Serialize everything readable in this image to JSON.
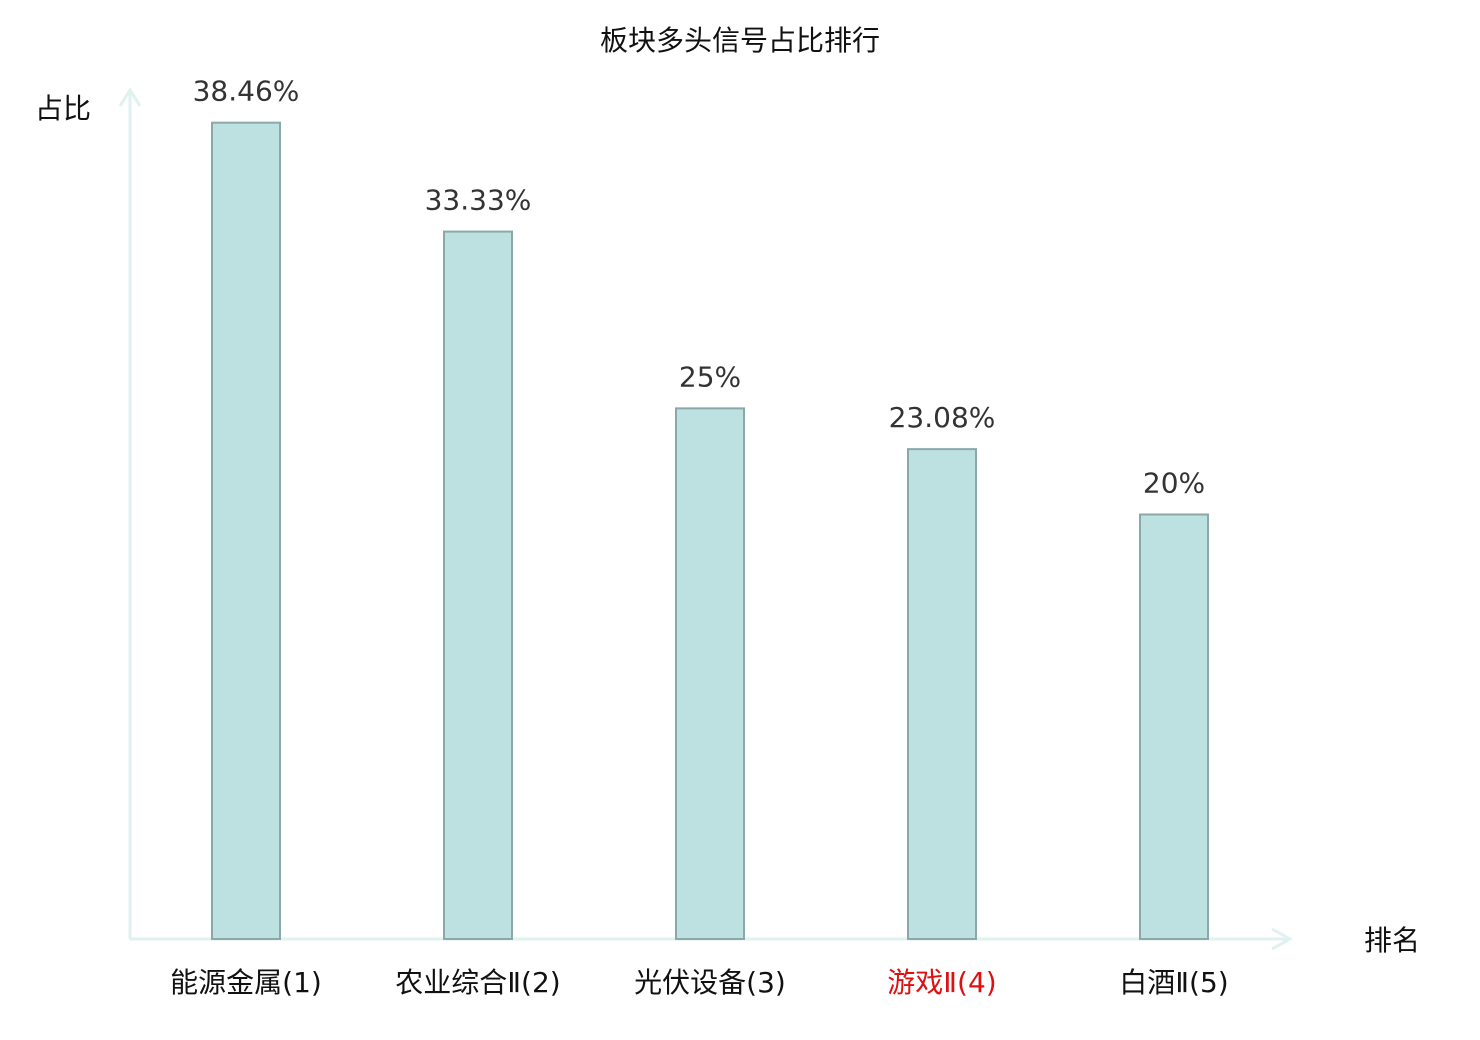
{
  "chart_data": {
    "type": "bar",
    "title": "板块多头信号占比排行",
    "y_label": "占比",
    "x_label": "排名",
    "categories": [
      "能源金属(1)",
      "农业综合Ⅱ(2)",
      "光伏设备(3)",
      "游戏Ⅱ(4)",
      "白酒Ⅱ(5)"
    ],
    "category_colors": [
      "#111111",
      "#111111",
      "#111111",
      "#dd1111",
      "#111111"
    ],
    "values": [
      38.46,
      33.33,
      25,
      23.08,
      20
    ],
    "value_labels": [
      "38.46%",
      "33.33%",
      "25%",
      "23.08%",
      "20%"
    ],
    "color": "#bde0e1",
    "ylim": [
      0,
      40
    ]
  }
}
